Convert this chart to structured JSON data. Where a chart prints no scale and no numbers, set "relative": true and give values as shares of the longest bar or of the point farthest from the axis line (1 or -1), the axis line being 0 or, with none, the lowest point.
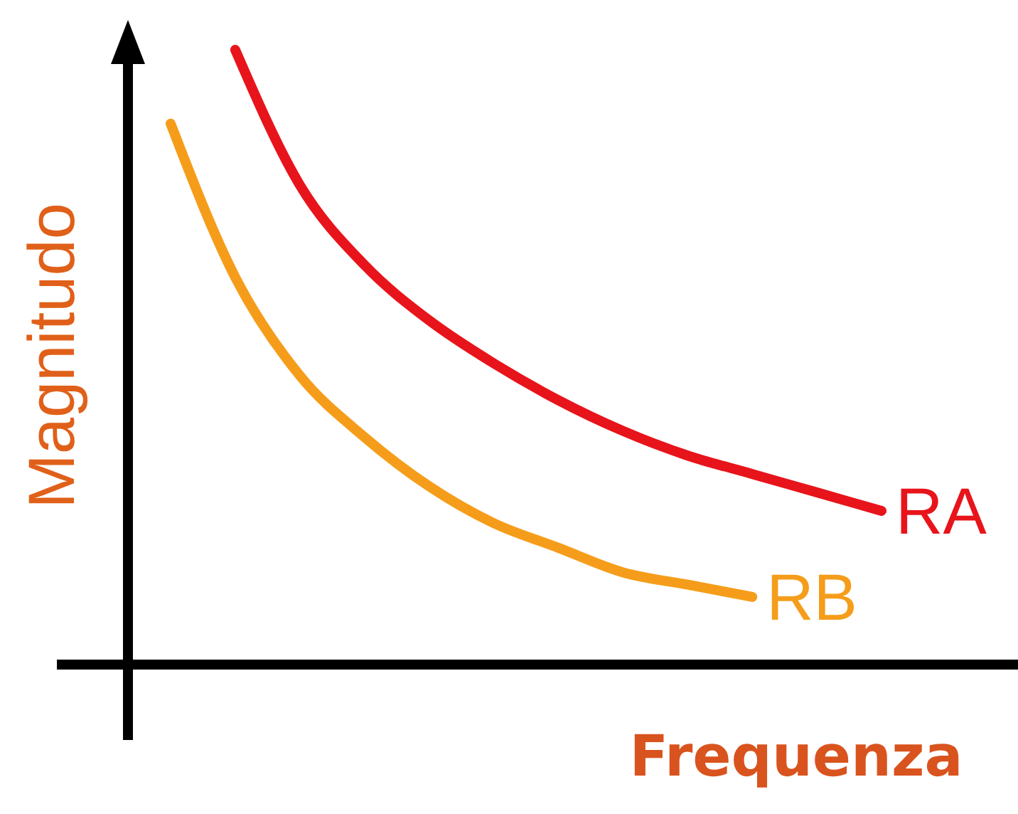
{
  "chart_data": {
    "type": "line",
    "relative": true,
    "xlabel": "Frequenza",
    "ylabel": "Magnitudo",
    "categories": [
      null,
      null,
      null,
      null,
      null,
      null,
      null,
      null,
      null,
      null,
      null,
      null
    ],
    "series": [
      {
        "name": "RA",
        "color": "#e8141b",
        "values": [
          null,
          1,
          0.78,
          0.65,
          0.56,
          0.49,
          0.43,
          0.38,
          0.34,
          0.31,
          0.28,
          0.25
        ]
      },
      {
        "name": "RB",
        "color": "#f59d1a",
        "values": [
          0.88,
          0.63,
          0.47,
          0.37,
          0.29,
          0.23,
          0.19,
          0.15,
          0.13,
          0.11,
          null,
          null
        ]
      }
    ]
  }
}
